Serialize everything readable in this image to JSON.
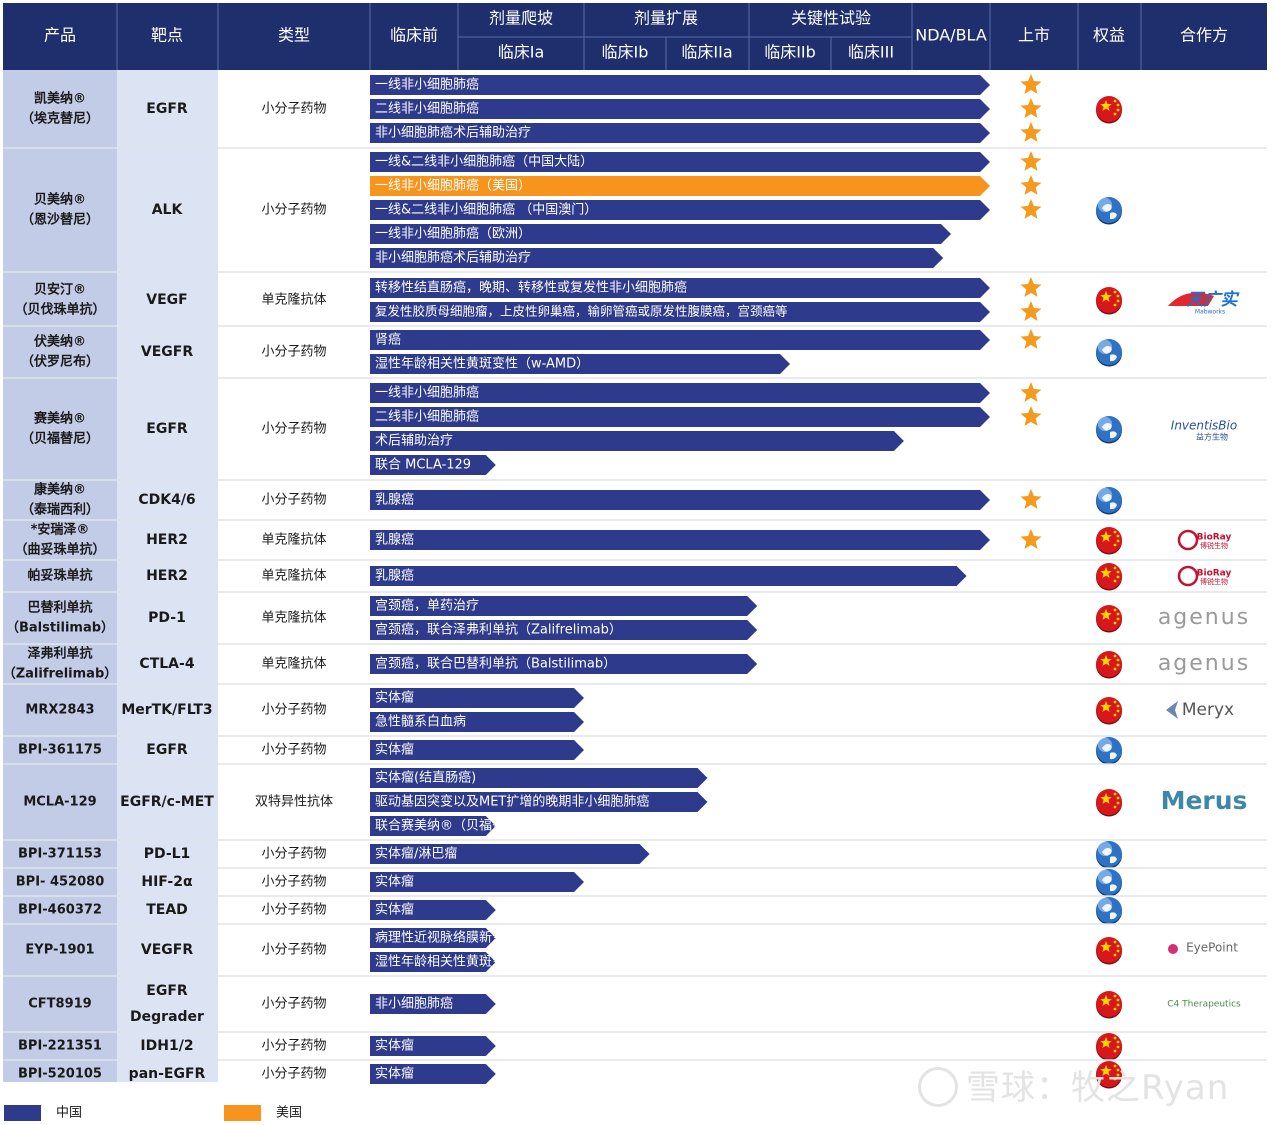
{
  "chart_data": {
    "type": "table",
    "header": {
      "product": "产品",
      "target": "靶点",
      "drug_type": "类型",
      "preclinical": "临床前",
      "group_dose_escalation": "剂量爬坡",
      "group_dose_expansion": "剂量扩展",
      "group_pivotal": "关键性试验",
      "phase_1a": "临床Ia",
      "phase_1b": "临床Ib",
      "phase_2a": "临床IIa",
      "phase_2b": "临床IIb",
      "phase_3": "临床III",
      "nda_bla": "NDA/BLA",
      "launched": "上市",
      "rights": "权益",
      "partner": "合作方"
    },
    "stages": [
      "临床前",
      "临床Ia",
      "临床Ib",
      "临床IIa",
      "临床IIb",
      "临床III",
      "NDA/BLA",
      "上市"
    ],
    "region_legend": [
      {
        "name": "中国",
        "color": "#2E3A8C"
      },
      {
        "name": "美国",
        "color": "#F7941D"
      }
    ],
    "rows": [
      {
        "product": "凯美纳®\n（埃克替尼）",
        "target": "EGFR",
        "drug_type": "小分子药物",
        "rights": "china",
        "partner": "",
        "indications": [
          {
            "label": "一线非小细胞肺癌",
            "stage": 7,
            "region": "中国",
            "launched": true
          },
          {
            "label": "二线非小细胞肺癌",
            "stage": 7,
            "region": "中国",
            "launched": true
          },
          {
            "label": "非小细胞肺癌术后辅助治疗",
            "stage": 7,
            "region": "中国",
            "launched": true
          }
        ]
      },
      {
        "product": "贝美纳®\n（恩沙替尼）",
        "target": "ALK",
        "drug_type": "小分子药物",
        "rights": "global",
        "partner": "",
        "indications": [
          {
            "label": "一线&二线非小细胞肺癌（中国大陆）",
            "stage": 7,
            "region": "中国",
            "launched": true
          },
          {
            "label": "一线非小细胞肺癌（美国）",
            "stage": 7,
            "region": "美国",
            "launched": true
          },
          {
            "label": "一线&二线非小细胞肺癌 （中国澳门）",
            "stage": 7,
            "region": "中国",
            "launched": true
          },
          {
            "label": "一线非小细胞肺癌（欧洲）",
            "stage": 6.5,
            "region": "中国",
            "launched": false
          },
          {
            "label": "非小细胞肺癌术后辅助治疗",
            "stage": 6.4,
            "region": "中国",
            "launched": false
          }
        ]
      },
      {
        "product": "贝安汀®\n（贝伐珠单抗）",
        "target": "VEGF",
        "drug_type": "单克隆抗体",
        "rights": "china",
        "partner": "天广实",
        "indications": [
          {
            "label": "转移性结直肠癌，晚期、转移性或复发性非小细胞肺癌",
            "stage": 7,
            "region": "中国",
            "launched": true
          },
          {
            "label": "复发性胶质母细胞瘤，上皮性卵巢癌，输卵管癌或原发性腹膜癌，宫颈癌等",
            "stage": 7,
            "region": "中国",
            "launched": true
          }
        ]
      },
      {
        "product": "伏美纳®\n（伏罗尼布）",
        "target": "VEGFR",
        "drug_type": "小分子药物",
        "rights": "global",
        "partner": "",
        "indications": [
          {
            "label": "肾癌",
            "stage": 7,
            "region": "中国",
            "launched": true
          },
          {
            "label": "湿性年龄相关性黄斑变性（w-AMD）",
            "stage": 4.5,
            "region": "中国",
            "launched": false
          }
        ]
      },
      {
        "product": "赛美纳®\n（贝福替尼）",
        "target": "EGFR",
        "drug_type": "小分子药物",
        "rights": "global",
        "partner": "InventisBio",
        "indications": [
          {
            "label": "一线非小细胞肺癌",
            "stage": 7,
            "region": "中国",
            "launched": true
          },
          {
            "label": "二线非小细胞肺癌",
            "stage": 7,
            "region": "中国",
            "launched": true
          },
          {
            "label": "术后辅助治疗",
            "stage": 5.9,
            "region": "中国",
            "launched": false
          },
          {
            "label": "联合 MCLA-129",
            "stage": 1.3,
            "region": "中国",
            "launched": false
          }
        ]
      },
      {
        "product": "康美纳®\n（泰瑞西利）",
        "target": "CDK4/6",
        "drug_type": "小分子药物",
        "rights": "global",
        "partner": "",
        "indications": [
          {
            "label": "乳腺癌",
            "stage": 7,
            "region": "中国",
            "launched": true
          }
        ]
      },
      {
        "product": "*安瑞泽®\n（曲妥珠单抗）",
        "target": "HER2",
        "drug_type": "单克隆抗体",
        "rights": "china",
        "partner": "BioRay",
        "indications": [
          {
            "label": "乳腺癌",
            "stage": 7,
            "region": "中国",
            "launched": true
          }
        ]
      },
      {
        "product": "帕妥珠单抗",
        "target": "HER2",
        "drug_type": "单克隆抗体",
        "rights": "china",
        "partner": "BioRay",
        "indications": [
          {
            "label": "乳腺癌",
            "stage": 6.7,
            "region": "中国",
            "launched": false
          }
        ]
      },
      {
        "product": "巴替利单抗\n（Balstilimab）",
        "target": "PD-1",
        "drug_type": "单克隆抗体",
        "rights": "china",
        "partner": "agenus",
        "indications": [
          {
            "label": "宫颈癌，单药治疗",
            "stage": 4.1,
            "region": "中国",
            "launched": false
          },
          {
            "label": "宫颈癌，联合泽弗利单抗（Zalifrelimab）",
            "stage": 4.1,
            "region": "中国",
            "launched": false
          }
        ]
      },
      {
        "product": "泽弗利单抗\n（Zalifrelimab）",
        "target": "CTLA-4",
        "drug_type": "单克隆抗体",
        "rights": "china",
        "partner": "agenus",
        "indications": [
          {
            "label": "宫颈癌，联合巴替利单抗（Balstilimab）",
            "stage": 4.1,
            "region": "中国",
            "launched": false
          }
        ]
      },
      {
        "product": "MRX2843",
        "target": "MerTK/FLT3",
        "drug_type": "小分子药物",
        "rights": "china",
        "partner": "Meryx",
        "indications": [
          {
            "label": "实体瘤",
            "stage": 2,
            "region": "中国",
            "launched": false
          },
          {
            "label": "急性髓系白血病",
            "stage": 2,
            "region": "中国",
            "launched": false
          }
        ]
      },
      {
        "product": "BPI-361175",
        "target": "EGFR",
        "drug_type": "小分子药物",
        "rights": "global",
        "partner": "",
        "indications": [
          {
            "label": "实体瘤",
            "stage": 2,
            "region": "中国",
            "launched": false
          }
        ]
      },
      {
        "product": "MCLA-129",
        "target": "EGFR/c-MET",
        "drug_type": "双特异性抗体",
        "rights": "china",
        "partner": "Merus",
        "indications": [
          {
            "label": "实体瘤(结直肠癌)",
            "stage": 3.5,
            "region": "中国",
            "launched": false
          },
          {
            "label": "驱动基因突变以及MET扩增的晚期非小细胞肺癌",
            "stage": 3.5,
            "region": "中国",
            "launched": false
          },
          {
            "label": "联合赛美纳®（贝福替尼）",
            "stage": 1.3,
            "region": "中国",
            "launched": false
          }
        ]
      },
      {
        "product": "BPI-371153",
        "target": "PD-L1",
        "drug_type": "小分子药物",
        "rights": "global",
        "partner": "",
        "indications": [
          {
            "label": "实体瘤/淋巴瘤",
            "stage": 2.8,
            "region": "中国",
            "launched": false
          }
        ]
      },
      {
        "product": "BPI- 452080",
        "target": "HIF-2α",
        "drug_type": "小分子药物",
        "rights": "global",
        "partner": "",
        "indications": [
          {
            "label": "实体瘤",
            "stage": 2,
            "region": "中国",
            "launched": false
          }
        ]
      },
      {
        "product": "BPI-460372",
        "target": "TEAD",
        "drug_type": "小分子药物",
        "rights": "global",
        "partner": "",
        "indications": [
          {
            "label": "实体瘤",
            "stage": 1.3,
            "region": "中国",
            "launched": false
          }
        ]
      },
      {
        "product": "EYP-1901",
        "target": "VEGFR",
        "drug_type": "小分子药物",
        "rights": "china",
        "partner": "EyePoint",
        "indications": [
          {
            "label": "病理性近视脉络膜新生血管",
            "stage": 1.3,
            "region": "中国",
            "launched": false
          },
          {
            "label": "湿性年龄相关性黄斑变性",
            "stage": 1.3,
            "region": "中国",
            "launched": false
          }
        ]
      },
      {
        "product": "CFT8919",
        "target": "EGFR\nDegrader",
        "drug_type": "小分子药物",
        "rights": "china",
        "partner": "C4 Therapeutics",
        "indications": [
          {
            "label": "非小细胞肺癌",
            "stage": 1.3,
            "region": "中国",
            "launched": false
          }
        ]
      },
      {
        "product": "BPI-221351",
        "target": "IDH1/2",
        "drug_type": "小分子药物",
        "rights": "china",
        "partner": "",
        "indications": [
          {
            "label": "实体瘤",
            "stage": 1.3,
            "region": "中国",
            "launched": false
          }
        ]
      },
      {
        "product": "BPI-520105",
        "target": "pan-EGFR",
        "drug_type": "小分子药物",
        "rights": "china",
        "partner": "",
        "indications": [
          {
            "label": "实体瘤",
            "stage": 1.3,
            "region": "中国",
            "launched": false
          }
        ]
      }
    ]
  },
  "watermark": "雪球：牧之Ryan"
}
